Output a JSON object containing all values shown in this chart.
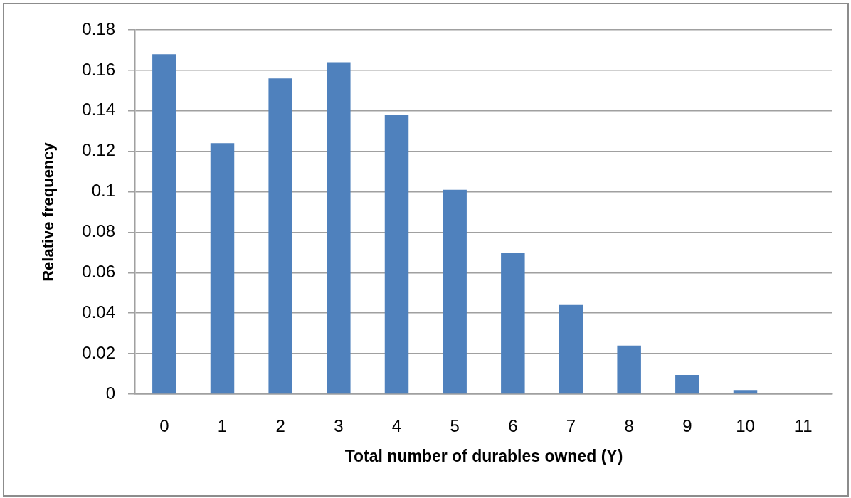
{
  "chart_data": {
    "type": "bar",
    "xlabel": "Total number of durables owned (Y)",
    "ylabel": "Relative frequency",
    "categories": [
      "0",
      "1",
      "2",
      "3",
      "4",
      "5",
      "6",
      "7",
      "8",
      "9",
      "10",
      "11"
    ],
    "values": [
      0.168,
      0.124,
      0.156,
      0.164,
      0.138,
      0.101,
      0.07,
      0.044,
      0.024,
      0.0095,
      0.002,
      0
    ],
    "color": "#4f81bd",
    "ylim": [
      0,
      0.18
    ],
    "yticks": [
      0,
      0.02,
      0.04,
      0.06,
      0.08,
      0.1,
      0.12,
      0.14,
      0.16,
      0.18
    ],
    "grid": "y"
  }
}
